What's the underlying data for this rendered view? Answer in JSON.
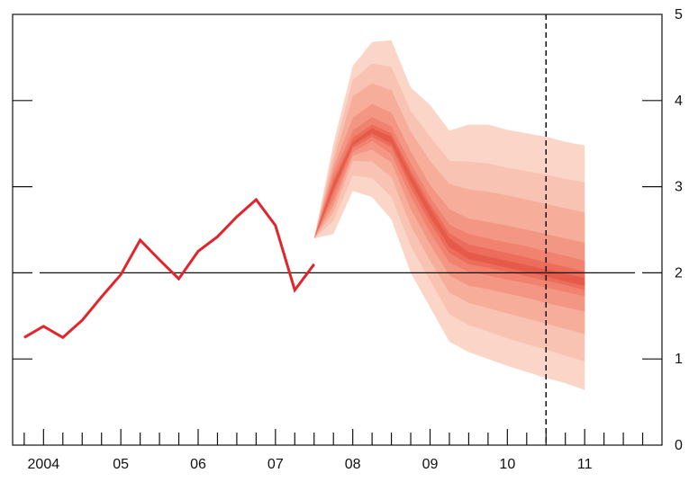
{
  "chart_data": {
    "type": "area",
    "subtype": "fan-chart",
    "title": "",
    "xlabel": "",
    "ylabel": "",
    "ylim": [
      0,
      5
    ],
    "xlim": [
      2003.6,
      2012.0
    ],
    "y_ticks": [
      "0",
      "1",
      "2",
      "3",
      "4",
      "5"
    ],
    "x_ticks": [
      {
        "label": "2004",
        "x": 2004.0
      },
      {
        "label": "05",
        "x": 2005.0
      },
      {
        "label": "06",
        "x": 2006.0
      },
      {
        "label": "07",
        "x": 2007.0
      },
      {
        "label": "08",
        "x": 2008.0
      },
      {
        "label": "09",
        "x": 2009.0
      },
      {
        "label": "10",
        "x": 2010.0
      },
      {
        "label": "11",
        "x": 2011.0
      }
    ],
    "reference_line_y": 2,
    "forecast_divider_x": 2010.5,
    "grid": false,
    "colors": {
      "history_line": "#e0252b",
      "fan_bands": [
        "#fbd6c8",
        "#f8c3b2",
        "#f6ae9b",
        "#f39784",
        "#f0826f",
        "#ec6d5b",
        "#e65a4a"
      ],
      "axis": "#111111"
    },
    "history": {
      "x": [
        2003.75,
        2004.0,
        2004.25,
        2004.5,
        2004.75,
        2005.0,
        2005.25,
        2005.5,
        2005.75,
        2006.0,
        2006.25,
        2006.5,
        2006.75,
        2007.0,
        2007.25,
        2007.5
      ],
      "y": [
        1.25,
        1.38,
        1.25,
        1.45,
        1.72,
        1.98,
        2.38,
        2.15,
        1.93,
        2.25,
        2.42,
        2.65,
        2.85,
        2.55,
        1.8,
        2.1
      ]
    },
    "fan_x": [
      2007.5,
      2007.75,
      2008.0,
      2008.25,
      2008.5,
      2008.75,
      2009.0,
      2009.25,
      2009.5,
      2009.75,
      2010.0,
      2010.25,
      2010.5,
      2010.75,
      2011.0
    ],
    "fan_center": [
      2.4,
      3.0,
      3.5,
      3.65,
      3.55,
      3.1,
      2.7,
      2.35,
      2.2,
      2.15,
      2.1,
      2.05,
      2.0,
      1.95,
      1.9
    ],
    "fan_bands": [
      {
        "lower": [
          2.4,
          2.45,
          2.95,
          2.88,
          2.62,
          2.0,
          1.6,
          1.2,
          1.08,
          1.0,
          0.92,
          0.85,
          0.78,
          0.72,
          0.64
        ],
        "upper": [
          2.4,
          3.5,
          4.4,
          4.68,
          4.7,
          4.15,
          3.95,
          3.65,
          3.72,
          3.72,
          3.66,
          3.62,
          3.58,
          3.52,
          3.48
        ]
      },
      {
        "lower": [
          2.4,
          2.6,
          3.13,
          3.1,
          2.88,
          2.31,
          1.91,
          1.52,
          1.39,
          1.32,
          1.24,
          1.17,
          1.11,
          1.04,
          0.97
        ],
        "upper": [
          2.4,
          3.4,
          4.24,
          4.43,
          4.39,
          3.88,
          3.58,
          3.3,
          3.29,
          3.27,
          3.22,
          3.18,
          3.14,
          3.09,
          3.05
        ]
      },
      {
        "lower": [
          2.4,
          2.7,
          3.3,
          3.29,
          3.11,
          2.55,
          2.14,
          1.77,
          1.65,
          1.59,
          1.53,
          1.47,
          1.41,
          1.35,
          1.29
        ],
        "upper": [
          2.4,
          3.3,
          4.05,
          4.2,
          4.12,
          3.64,
          3.3,
          3.03,
          2.97,
          2.94,
          2.9,
          2.85,
          2.8,
          2.75,
          2.7
        ]
      },
      {
        "lower": [
          2.4,
          2.78,
          3.36,
          3.43,
          3.28,
          2.74,
          2.33,
          1.97,
          1.85,
          1.81,
          1.76,
          1.71,
          1.65,
          1.6,
          1.55
        ],
        "upper": [
          2.4,
          3.22,
          3.8,
          3.96,
          3.86,
          3.41,
          3.02,
          2.74,
          2.63,
          2.59,
          2.55,
          2.5,
          2.45,
          2.4,
          2.35
        ]
      },
      {
        "lower": [
          2.4,
          2.85,
          3.4,
          3.53,
          3.38,
          2.89,
          2.47,
          2.12,
          2.01,
          1.97,
          1.92,
          1.88,
          1.83,
          1.78,
          1.73
        ],
        "upper": [
          2.4,
          3.15,
          3.65,
          3.81,
          3.7,
          3.27,
          2.88,
          2.56,
          2.45,
          2.4,
          2.35,
          2.31,
          2.25,
          2.2,
          2.14
        ]
      },
      {
        "lower": [
          2.4,
          2.92,
          3.45,
          3.58,
          3.46,
          2.99,
          2.58,
          2.23,
          2.1,
          2.06,
          2.01,
          1.96,
          1.91,
          1.86,
          1.8
        ],
        "upper": [
          2.4,
          3.08,
          3.57,
          3.72,
          3.62,
          3.19,
          2.8,
          2.46,
          2.33,
          2.28,
          2.23,
          2.18,
          2.12,
          2.07,
          2.01
        ]
      },
      {
        "lower": [
          2.4,
          2.96,
          3.48,
          3.62,
          3.5,
          3.05,
          2.65,
          2.3,
          2.16,
          2.11,
          2.06,
          2.01,
          1.96,
          1.9,
          1.85
        ],
        "upper": [
          2.4,
          3.04,
          3.52,
          3.68,
          3.58,
          3.14,
          2.75,
          2.4,
          2.24,
          2.19,
          2.14,
          2.09,
          2.04,
          1.99,
          1.94
        ]
      }
    ]
  }
}
